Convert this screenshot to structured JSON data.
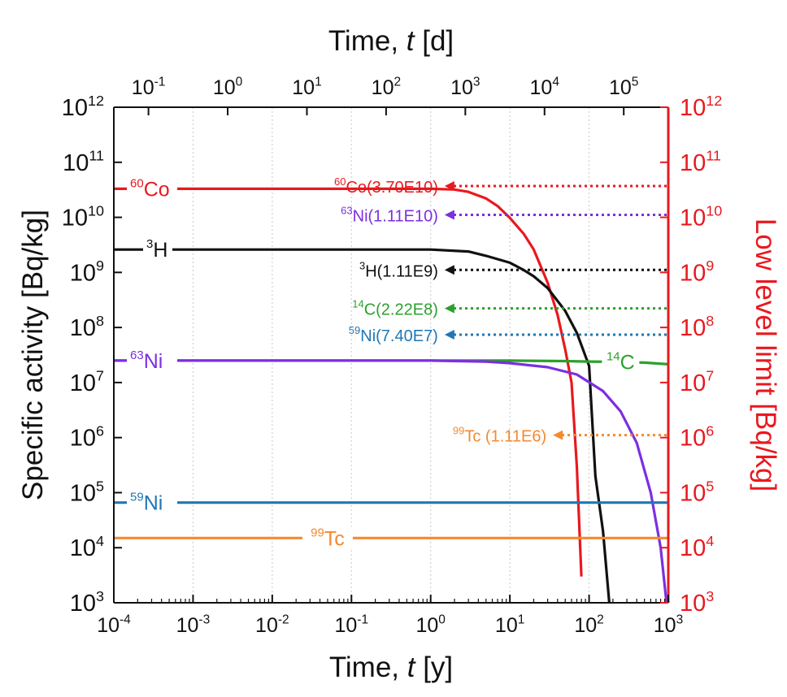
{
  "chart_data": {
    "type": "line",
    "x_scale": "log",
    "y_scale": "log",
    "xlim": [
      0.0001,
      1000
    ],
    "ylim": [
      1000,
      1000000000000
    ],
    "grid": true,
    "xlabel": {
      "prefix": "Time, ",
      "var": "t",
      "unit": " [y]"
    },
    "top_xlabel": {
      "prefix": "Time, ",
      "var": "t",
      "unit": " [d]"
    },
    "ylabel": "Specific activity [Bq/kg]",
    "right_ylabel": "Low level limit [Bq/kg]",
    "x_ticks": [
      {
        "value": 0.0001,
        "base": "10",
        "exp": "-4"
      },
      {
        "value": 0.001,
        "base": "10",
        "exp": "-3"
      },
      {
        "value": 0.01,
        "base": "10",
        "exp": "-2"
      },
      {
        "value": 0.1,
        "base": "10",
        "exp": "-1"
      },
      {
        "value": 1,
        "base": "10",
        "exp": "0"
      },
      {
        "value": 10,
        "base": "10",
        "exp": "1"
      },
      {
        "value": 100,
        "base": "10",
        "exp": "2"
      },
      {
        "value": 1000,
        "base": "10",
        "exp": "3"
      }
    ],
    "top_x_ticks": [
      {
        "value_days": 0.1,
        "base": "10",
        "exp": "-1"
      },
      {
        "value_days": 1,
        "base": "10",
        "exp": "0"
      },
      {
        "value_days": 10,
        "base": "10",
        "exp": "1"
      },
      {
        "value_days": 100,
        "base": "10",
        "exp": "2"
      },
      {
        "value_days": 1000,
        "base": "10",
        "exp": "3"
      },
      {
        "value_days": 10000,
        "base": "10",
        "exp": "4"
      },
      {
        "value_days": 100000,
        "base": "10",
        "exp": "5"
      }
    ],
    "y_ticks": [
      {
        "value": 1000,
        "base": "10",
        "exp": "3"
      },
      {
        "value": 10000,
        "base": "10",
        "exp": "4"
      },
      {
        "value": 100000,
        "base": "10",
        "exp": "5"
      },
      {
        "value": 1000000,
        "base": "10",
        "exp": "6"
      },
      {
        "value": 10000000,
        "base": "10",
        "exp": "7"
      },
      {
        "value": 100000000,
        "base": "10",
        "exp": "8"
      },
      {
        "value": 1000000000,
        "base": "10",
        "exp": "9"
      },
      {
        "value": 10000000000,
        "base": "10",
        "exp": "10"
      },
      {
        "value": 100000000000,
        "base": "10",
        "exp": "11"
      },
      {
        "value": 1000000000000,
        "base": "10",
        "exp": "12"
      }
    ],
    "series": [
      {
        "name": "60Co",
        "sup": "60",
        "elem": "Co",
        "color": "#e8191f",
        "label_at": {
          "x": 0.0001,
          "y": 33000000000
        },
        "points": [
          [
            0.0001,
            33000000000
          ],
          [
            1,
            33000000000
          ],
          [
            2,
            32000000000
          ],
          [
            3,
            29000000000
          ],
          [
            5,
            22000000000
          ],
          [
            7,
            16000000000
          ],
          [
            10,
            9800000000
          ],
          [
            15,
            5000000000
          ],
          [
            20,
            2600000000
          ],
          [
            30,
            650000000
          ],
          [
            40,
            170000000
          ],
          [
            50,
            40000000
          ],
          [
            60,
            10000000
          ],
          [
            70,
            300000
          ],
          [
            80,
            3000
          ]
        ]
      },
      {
        "name": "3H",
        "sup": "3",
        "elem": "H",
        "color": "#111111",
        "label_at": {
          "x": 0.0001,
          "y": 2600000000
        },
        "points": [
          [
            0.0001,
            2600000000
          ],
          [
            1,
            2600000000
          ],
          [
            3,
            2400000000
          ],
          [
            5,
            2000000000
          ],
          [
            10,
            1500000000
          ],
          [
            15,
            1100000000
          ],
          [
            20,
            850000000
          ],
          [
            30,
            520000000
          ],
          [
            50,
            200000000
          ],
          [
            70,
            80000000
          ],
          [
            100,
            20000000
          ],
          [
            120,
            200000
          ],
          [
            150,
            20000
          ],
          [
            180,
            1000
          ]
        ]
      },
      {
        "name": "14C",
        "sup": "14",
        "elem": "C",
        "color": "#2ca02c",
        "label_at": {
          "x": 250,
          "y": 23500000
        },
        "points": [
          [
            0.0001,
            25000000
          ],
          [
            10,
            25000000
          ],
          [
            50,
            24500000
          ],
          [
            100,
            24000000
          ],
          [
            200,
            23800000
          ],
          [
            500,
            23000000
          ],
          [
            1000,
            21500000
          ]
        ]
      },
      {
        "name": "63Ni",
        "sup": "63",
        "elem": "Ni",
        "color": "#7b2fe0",
        "label_at": {
          "x": 0.0001,
          "y": 25000000
        },
        "points": [
          [
            0.0001,
            25000000
          ],
          [
            1,
            25000000
          ],
          [
            5,
            24000000
          ],
          [
            10,
            22500000
          ],
          [
            30,
            19000000
          ],
          [
            70,
            14000000
          ],
          [
            150,
            7000000
          ],
          [
            250,
            3000000
          ],
          [
            400,
            800000
          ],
          [
            600,
            100000
          ],
          [
            800,
            10000
          ],
          [
            950,
            1000
          ]
        ]
      },
      {
        "name": "59Ni",
        "sup": "59",
        "elem": "Ni",
        "color": "#1f77b4",
        "label_at": {
          "x": 0.0001,
          "y": 66000
        },
        "points": [
          [
            0.0001,
            66000
          ],
          [
            1000,
            66000
          ]
        ]
      },
      {
        "name": "99Tc",
        "sup": "99",
        "elem": "Tc",
        "color": "#f4892e",
        "label_at": {
          "x": 0.05,
          "y": 15000
        },
        "points": [
          [
            0.0001,
            15000
          ],
          [
            1000,
            15000
          ]
        ]
      }
    ],
    "limits": [
      {
        "name": "60Co",
        "sup": "60",
        "text": "Co(3.70E10)",
        "value": 37000000000,
        "color": "#e8191f",
        "arrow_to": 1.5
      },
      {
        "name": "63Ni",
        "sup": "63",
        "text": "Ni(1.11E10)",
        "value": 11100000000,
        "color": "#7b2fe0",
        "arrow_to": 1.5
      },
      {
        "name": "3H",
        "sup": "3",
        "text": "H(1.11E9)",
        "value": 1110000000,
        "color": "#111111",
        "arrow_to": 1.5
      },
      {
        "name": "14C",
        "sup": "14",
        "text": "C(2.22E8)",
        "value": 222000000,
        "color": "#2ca02c",
        "arrow_to": 1.5
      },
      {
        "name": "59Ni",
        "sup": "59",
        "text": "Ni(7.40E7)",
        "value": 74000000,
        "color": "#1f77b4",
        "arrow_to": 1.5
      },
      {
        "name": "99Tc",
        "sup": "99",
        "text": "Tc (1.11E6)",
        "value": 1110000,
        "color": "#f4892e",
        "arrow_to": 35
      }
    ],
    "colors": {
      "axis": "#111111",
      "right_axis": "#e8191f",
      "grid": "#c8c8c8"
    }
  }
}
